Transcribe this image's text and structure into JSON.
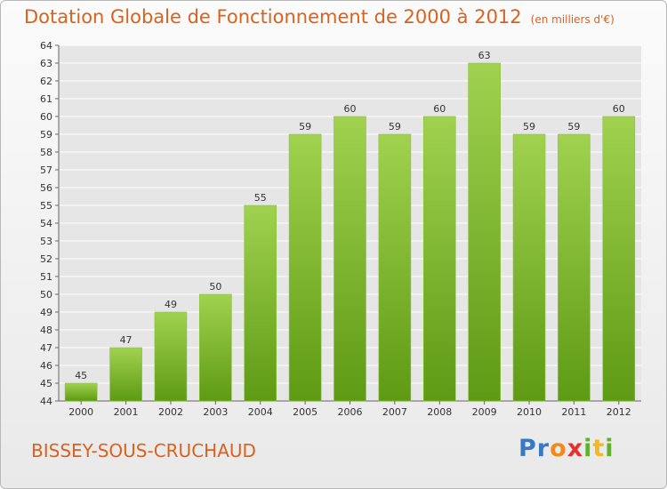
{
  "title": "Dotation Globale de Fonctionnement de 2000 à 2012",
  "unit_note": "(en milliers d'€)",
  "commune": "BISSEY-SOUS-CRUCHAUD",
  "logo": {
    "text": "Proxiti",
    "letters": [
      "P",
      "r",
      "o",
      "x",
      "i",
      "t",
      "i"
    ],
    "colors": [
      "#3a78c4",
      "#3a78c4",
      "#f08a1c",
      "#e6302a",
      "#5fb12e",
      "#f5b81c",
      "#5fb12e"
    ]
  },
  "colors": {
    "title": "#d9621d",
    "bar_top": "#a0d24f",
    "bar_bottom": "#5e9a14",
    "grid": "#ffffff"
  },
  "chart_data": {
    "type": "bar",
    "categories": [
      "2000",
      "2001",
      "2002",
      "2003",
      "2004",
      "2005",
      "2006",
      "2007",
      "2008",
      "2009",
      "2010",
      "2011",
      "2012"
    ],
    "values": [
      45,
      47,
      49,
      50,
      55,
      59,
      60,
      59,
      60,
      63,
      59,
      59,
      60
    ],
    "ylim": [
      44,
      64
    ],
    "yticks": [
      44,
      45,
      46,
      47,
      48,
      49,
      50,
      51,
      52,
      53,
      54,
      55,
      56,
      57,
      58,
      59,
      60,
      61,
      62,
      63,
      64
    ],
    "grid": true
  }
}
